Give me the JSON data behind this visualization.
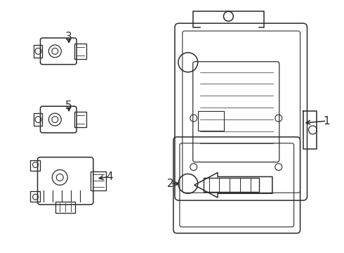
{
  "background_color": "#ffffff",
  "line_color": "#2a2a2a",
  "line_width": 1.1,
  "font_size": 11,
  "arrow_color": "#2a2a2a"
}
